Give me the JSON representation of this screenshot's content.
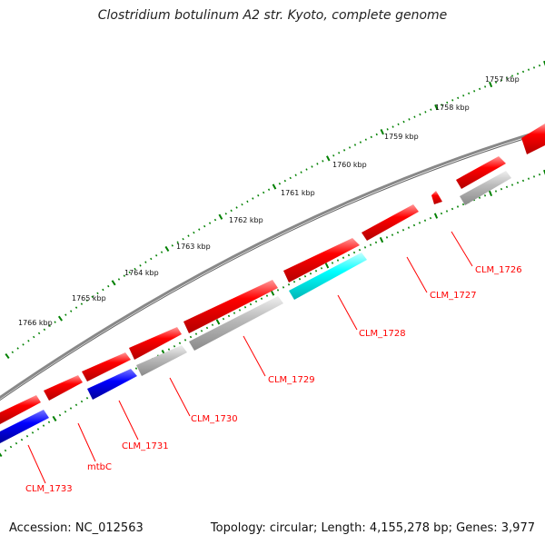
{
  "title": "Clostridium botulinum A2 str. Kyoto, complete genome",
  "footer": {
    "accession": "Accession: NC_012563",
    "summary": "Topology: circular; Length: 4,155,278 bp; Genes: 3,977"
  },
  "ticks": [
    "1757 kbp",
    "1758 kbp",
    "1759 kbp",
    "1760 kbp",
    "1761 kbp",
    "1762 kbp",
    "1763 kbp",
    "1764 kbp",
    "1765 kbp",
    "1766 kbp"
  ],
  "genes": [
    "CLM_1726",
    "CLM_1727",
    "CLM_1728",
    "CLM_1729",
    "CLM_1730",
    "CLM_1731",
    "mtbC",
    "CLM_1733"
  ],
  "colors": {
    "cds": "#ff0000",
    "gray": "#b4b4b4",
    "cyan": "#00ffff",
    "blue": "#0000ff",
    "tick": "#008000",
    "label": "#ff0000",
    "backbone": "#777777"
  }
}
